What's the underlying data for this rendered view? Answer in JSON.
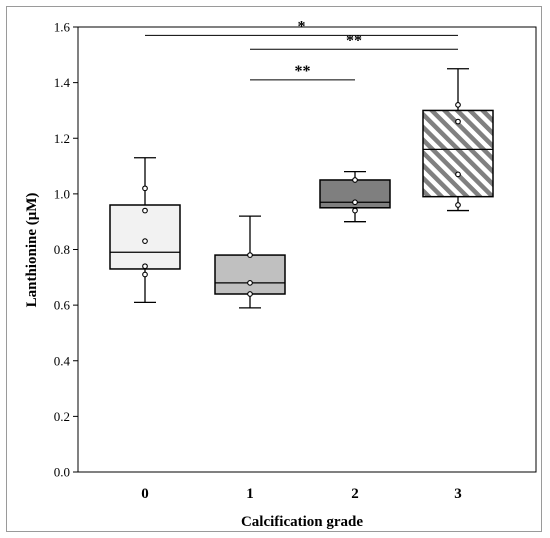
{
  "chart_data": {
    "type": "box",
    "xlabel": "Calcification grade",
    "ylabel": "Lanthionine (μM)",
    "categories": [
      "0",
      "1",
      "2",
      "3"
    ],
    "ylim": [
      0.0,
      1.6
    ],
    "yticks": [
      "0.0",
      "0.2",
      "0.4",
      "0.6",
      "0.8",
      "1.0",
      "1.2",
      "1.4",
      "1.6"
    ],
    "grid": false,
    "boxes": [
      {
        "category": "0",
        "whisker_low": 0.61,
        "q1": 0.73,
        "median": 0.79,
        "q3": 0.96,
        "whisker_high": 1.13,
        "fill": "#f2f2f2",
        "pattern": "none",
        "points": [
          1.02,
          0.94,
          0.83,
          0.74,
          0.71
        ]
      },
      {
        "category": "1",
        "whisker_low": 0.59,
        "q1": 0.64,
        "median": 0.68,
        "q3": 0.78,
        "whisker_high": 0.92,
        "fill": "#c0c0c0",
        "pattern": "none",
        "points": [
          0.78,
          0.68,
          0.64
        ]
      },
      {
        "category": "2",
        "whisker_low": 0.9,
        "q1": 0.95,
        "median": 0.97,
        "q3": 1.05,
        "whisker_high": 1.08,
        "fill": "#7f7f7f",
        "pattern": "none",
        "points": [
          1.05,
          0.97,
          0.94
        ]
      },
      {
        "category": "3",
        "whisker_low": 0.94,
        "q1": 0.99,
        "median": 1.16,
        "q3": 1.3,
        "whisker_high": 1.45,
        "fill": "#ffffff",
        "pattern": "diagonal-stripes",
        "stripe_color": "#808080",
        "points": [
          1.32,
          1.26,
          1.07,
          0.96
        ]
      }
    ],
    "significance": [
      {
        "from": "0",
        "to": "3",
        "label": "*",
        "y": 1.57
      },
      {
        "from": "1",
        "to": "3",
        "label": "**",
        "y": 1.52
      },
      {
        "from": "1",
        "to": "2",
        "label": "**",
        "y": 1.41
      }
    ]
  }
}
